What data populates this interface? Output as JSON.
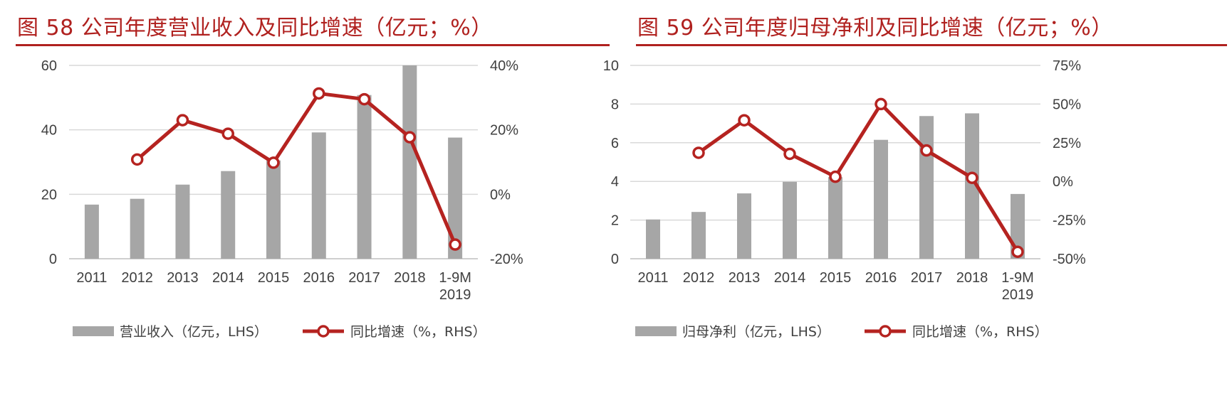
{
  "chart_data": [
    {
      "type": "bar+line",
      "title": "图 58 公司年度营业收入及同比增速（亿元；%）",
      "categories": [
        "2011",
        "2012",
        "2013",
        "2014",
        "2015",
        "2016",
        "2017",
        "2018",
        "1-9M\n2019"
      ],
      "left_axis": {
        "ylim": [
          0,
          60
        ],
        "ticks": [
          "0",
          "20",
          "40",
          "60"
        ],
        "tick_values": [
          0,
          20,
          40,
          60
        ]
      },
      "right_axis": {
        "ylim": [
          -20,
          40
        ],
        "ticks": [
          "-20%",
          "0%",
          "20%",
          "40%"
        ],
        "tick_values": [
          -20,
          0,
          20,
          40
        ]
      },
      "series": [
        {
          "name": "营业收入（亿元，LHS）",
          "kind": "bar",
          "axis": "left",
          "color": "#a6a6a6",
          "values": [
            16.8,
            18.6,
            23.0,
            27.2,
            30.5,
            39.2,
            50.8,
            60.0,
            37.6
          ]
        },
        {
          "name": "同比增速（%，RHS）",
          "kind": "line",
          "axis": "right",
          "color": "#b52320",
          "values": [
            null,
            10.8,
            23.0,
            18.8,
            9.8,
            31.3,
            29.5,
            17.7,
            -15.6
          ]
        }
      ],
      "grid": true,
      "legend": "bottom"
    },
    {
      "type": "bar+line",
      "title": "图 59 公司年度归母净利及同比增速（亿元；%）",
      "categories": [
        "2011",
        "2012",
        "2013",
        "2014",
        "2015",
        "2016",
        "2017",
        "2018",
        "1-9M\n2019"
      ],
      "left_axis": {
        "ylim": [
          0,
          10
        ],
        "ticks": [
          "0",
          "2",
          "4",
          "6",
          "8",
          "10"
        ],
        "tick_values": [
          0,
          2,
          4,
          6,
          8,
          10
        ]
      },
      "right_axis": {
        "ylim": [
          -50,
          75
        ],
        "ticks": [
          "-50%",
          "-25%",
          "0%",
          "25%",
          "50%",
          "75%"
        ],
        "tick_values": [
          -50,
          -25,
          0,
          25,
          50,
          75
        ]
      },
      "series": [
        {
          "name": "归母净利（亿元，LHS）",
          "kind": "bar",
          "axis": "left",
          "color": "#a6a6a6",
          "values": [
            2.03,
            2.42,
            3.38,
            3.98,
            4.22,
            6.15,
            7.38,
            7.52,
            3.35
          ]
        },
        {
          "name": "同比增速（%，RHS）",
          "kind": "line",
          "axis": "right",
          "color": "#b52320",
          "values": [
            null,
            18.5,
            39.5,
            17.8,
            3.0,
            50.0,
            20.0,
            2.3,
            -45.5
          ]
        }
      ],
      "grid": true,
      "legend": "bottom"
    }
  ]
}
